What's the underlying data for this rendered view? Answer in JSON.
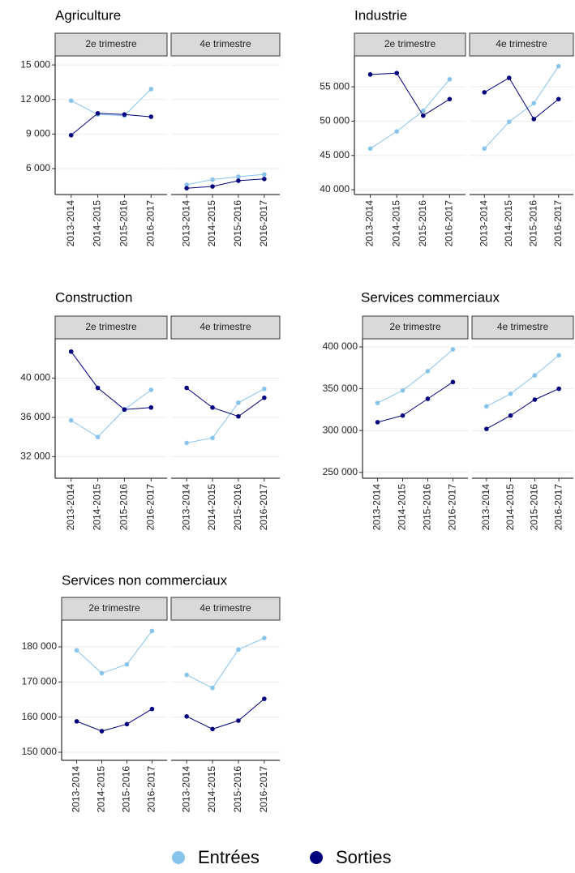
{
  "chart_data": [
    {
      "type": "line",
      "title": "Agriculture",
      "facets": [
        "2e trimestre",
        "4e trimestre"
      ],
      "categories": [
        "2013-2014",
        "2014-2015",
        "2015-2016",
        "2016-2017"
      ],
      "series": [
        {
          "values": [
            [
              11900,
              10700,
              10600,
              12900
            ],
            [
              4600,
              5050,
              5300,
              5500
            ]
          ]
        },
        {
          "values": [
            [
              8900,
              10800,
              10700,
              10500
            ],
            [
              4300,
              4450,
              4950,
              5100
            ]
          ]
        }
      ],
      "ylim": [
        3750,
        15780
      ],
      "yticks": [
        {
          "value": 6000,
          "label": "6 000"
        },
        {
          "value": 9000,
          "label": "9 000"
        },
        {
          "value": 12000,
          "label": "12 000"
        },
        {
          "value": 15000,
          "label": "15 000"
        }
      ],
      "grid": true
    },
    {
      "type": "line",
      "title": "Industrie",
      "facets": [
        "2e trimestre",
        "4e trimestre"
      ],
      "categories": [
        "2013-2014",
        "2014-2015",
        "2015-2016",
        "2016-2017"
      ],
      "series": [
        {
          "values": [
            [
              46000,
              48500,
              51500,
              56100
            ],
            [
              46000,
              49900,
              52600,
              58000
            ]
          ]
        },
        {
          "values": [
            [
              56800,
              57000,
              50800,
              53200
            ],
            [
              54200,
              56300,
              50300,
              53200
            ]
          ]
        }
      ],
      "ylim": [
        39300,
        59500
      ],
      "yticks": [
        {
          "value": 40000,
          "label": "40 000"
        },
        {
          "value": 45000,
          "label": "45 000"
        },
        {
          "value": 50000,
          "label": "50 000"
        },
        {
          "value": 55000,
          "label": "55 000"
        }
      ],
      "grid": true
    },
    {
      "type": "line",
      "title": "Construction",
      "facets": [
        "2e trimestre",
        "4e trimestre"
      ],
      "categories": [
        "2013-2014",
        "2014-2015",
        "2015-2016",
        "2016-2017"
      ],
      "series": [
        {
          "values": [
            [
              35700,
              34000,
              36800,
              38800
            ],
            [
              33400,
              33900,
              37500,
              38900
            ]
          ]
        },
        {
          "values": [
            [
              42700,
              39000,
              36800,
              37000
            ],
            [
              39000,
              37000,
              36100,
              38000
            ]
          ]
        }
      ],
      "ylim": [
        29800,
        44000
      ],
      "yticks": [
        {
          "value": 32000,
          "label": "32 000"
        },
        {
          "value": 36000,
          "label": "36 000"
        },
        {
          "value": 40000,
          "label": "40 000"
        }
      ],
      "grid": true
    },
    {
      "type": "line",
      "title": "Services commerciaux",
      "facets": [
        "2e trimestre",
        "4e trimestre"
      ],
      "categories": [
        "2013-2014",
        "2014-2015",
        "2015-2016",
        "2016-2017"
      ],
      "series": [
        {
          "values": [
            [
              333000,
              348000,
              371000,
              397000
            ],
            [
              329000,
              344000,
              366000,
              390000
            ]
          ]
        },
        {
          "values": [
            [
              310000,
              318000,
              338000,
              358000
            ],
            [
              302000,
              318000,
              337000,
              350000
            ]
          ]
        }
      ],
      "ylim": [
        243000,
        409700
      ],
      "yticks": [
        {
          "value": 250000,
          "label": "250 000"
        },
        {
          "value": 300000,
          "label": "300 000"
        },
        {
          "value": 350000,
          "label": "350 000"
        },
        {
          "value": 400000,
          "label": "400 000"
        }
      ],
      "grid": true
    },
    {
      "type": "line",
      "title": "Services non commerciaux",
      "facets": [
        "2e trimestre",
        "4e trimestre"
      ],
      "categories": [
        "2013-2014",
        "2014-2015",
        "2015-2016",
        "2016-2017"
      ],
      "series": [
        {
          "values": [
            [
              179000,
              172500,
              175000,
              184500
            ],
            [
              172000,
              168300,
              179200,
              182500
            ]
          ]
        },
        {
          "values": [
            [
              158800,
              156000,
              158000,
              162300
            ],
            [
              160200,
              156600,
              159000,
              165200
            ]
          ]
        }
      ],
      "ylim": [
        147700,
        187600
      ],
      "yticks": [
        {
          "value": 150000,
          "label": "150 000"
        },
        {
          "value": 160000,
          "label": "160 000"
        },
        {
          "value": 170000,
          "label": "170 000"
        },
        {
          "value": 180000,
          "label": "180 000"
        }
      ],
      "grid": true
    }
  ],
  "legend": [
    {
      "name": "Entrées",
      "color": "#87c4ec"
    },
    {
      "name": "Sorties",
      "color": "#00007f"
    }
  ]
}
